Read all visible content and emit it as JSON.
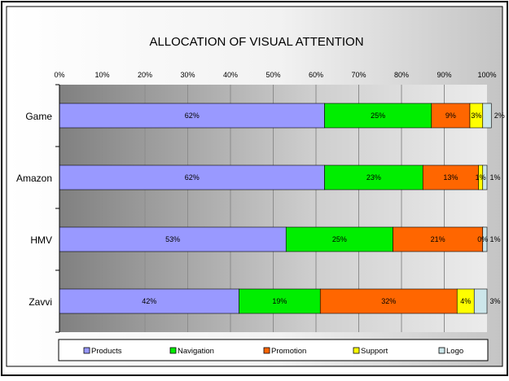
{
  "chart_data": {
    "type": "bar",
    "orientation": "horizontal",
    "stacked": "percent",
    "title": "ALLOCATION OF VISUAL ATTENTION",
    "categories": [
      "Game",
      "Amazon",
      "HMV",
      "Zavvi"
    ],
    "xlim": [
      0,
      100
    ],
    "x_ticks": [
      "0%",
      "10%",
      "20%",
      "30%",
      "40%",
      "50%",
      "60%",
      "70%",
      "80%",
      "90%",
      "100%"
    ],
    "grid": true,
    "legend_position": "bottom",
    "series": [
      {
        "name": "Products",
        "color": "#9999ff",
        "values": [
          62,
          62,
          53,
          42
        ],
        "labels": [
          "62%",
          "62%",
          "53%",
          "42%"
        ]
      },
      {
        "name": "Navigation",
        "color": "#00ee00",
        "values": [
          25,
          23,
          25,
          19
        ],
        "labels": [
          "25%",
          "23%",
          "25%",
          "19%"
        ]
      },
      {
        "name": "Promotion",
        "color": "#ff6600",
        "values": [
          9,
          13,
          21,
          32
        ],
        "labels": [
          "9%",
          "13%",
          "21%",
          "32%"
        ]
      },
      {
        "name": "Support",
        "color": "#ffff00",
        "values": [
          3,
          1,
          0,
          4
        ],
        "labels": [
          "3%",
          "1%",
          "0%",
          "4%"
        ]
      },
      {
        "name": "Logo",
        "color": "#cce6ea",
        "values": [
          2,
          1,
          1,
          3
        ],
        "labels": [
          "2%",
          "1%",
          "1%",
          "3%"
        ]
      }
    ]
  }
}
